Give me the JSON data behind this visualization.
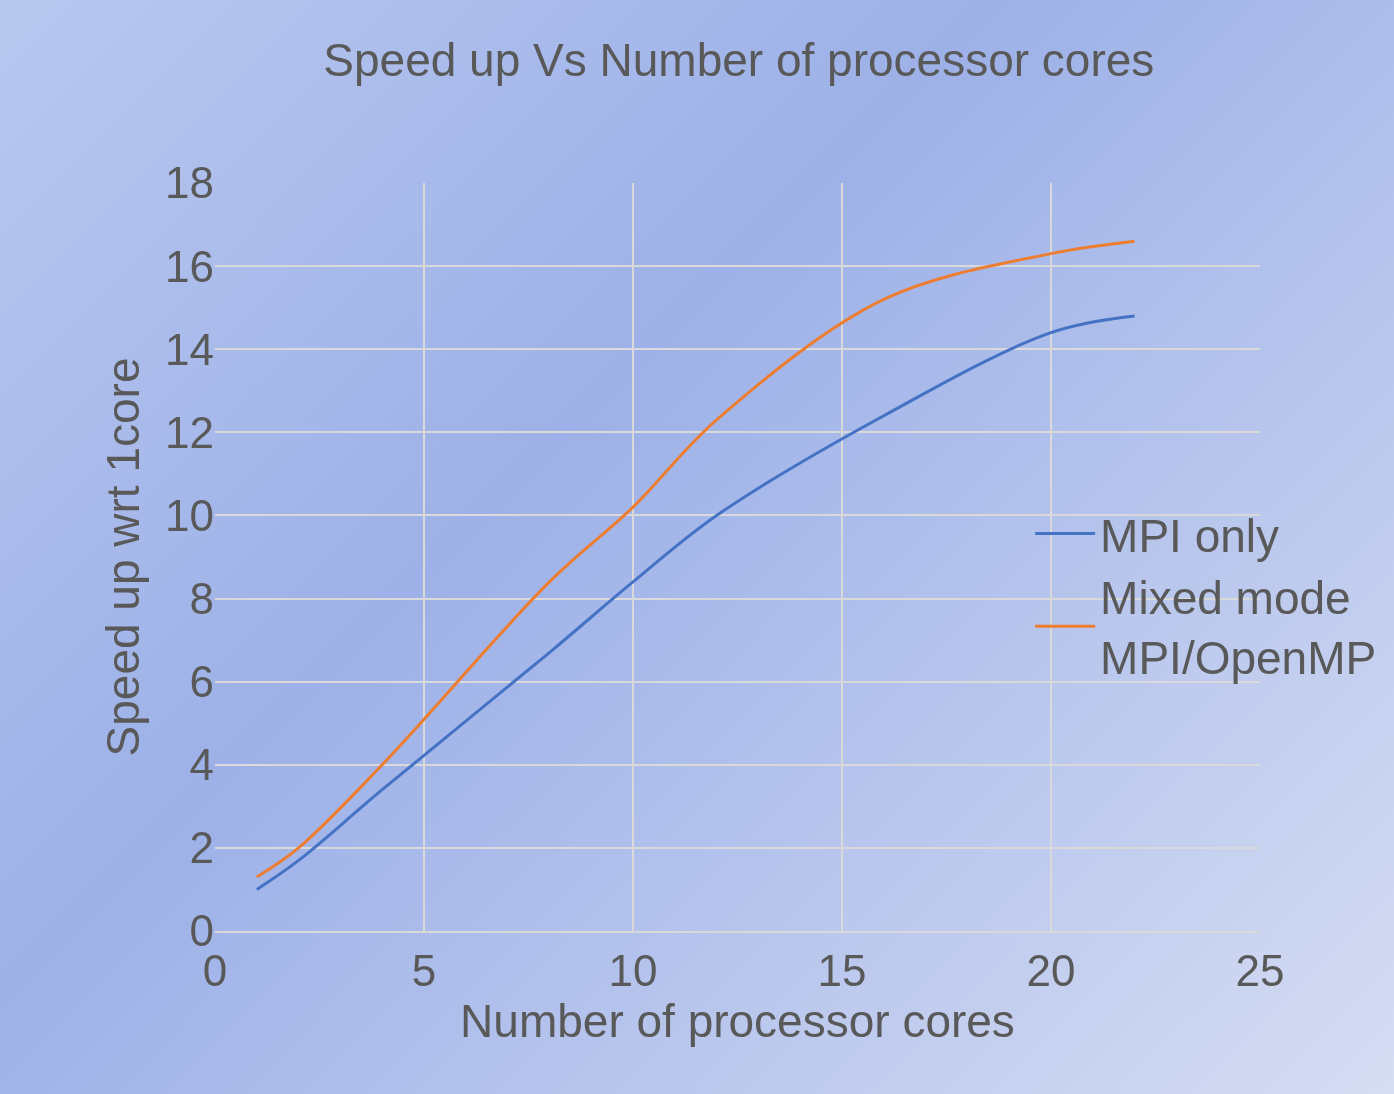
{
  "chart_data": {
    "type": "line",
    "title": "Speed up Vs Number of processor cores",
    "xlabel": "Number of processor cores",
    "ylabel": "Speed up wrt 1core",
    "x": [
      1,
      2,
      4,
      8,
      10,
      12,
      16,
      20,
      22
    ],
    "series": [
      {
        "name": "MPI only",
        "color": "#4472c4",
        "values": [
          1.0,
          1.7,
          3.4,
          6.7,
          8.4,
          10.0,
          12.4,
          14.4,
          14.8
        ]
      },
      {
        "name": "Mixed mode MPI/OpenMP",
        "color": "#ed7d31",
        "values": [
          1.3,
          2.0,
          4.0,
          8.4,
          10.2,
          12.3,
          15.2,
          16.3,
          16.6
        ]
      }
    ],
    "xlim": [
      0,
      25
    ],
    "xticks": [
      0,
      5,
      10,
      15,
      20,
      25
    ],
    "ylim": [
      0,
      18
    ],
    "yticks": [
      0,
      2,
      4,
      6,
      8,
      10,
      12,
      14,
      16,
      18
    ],
    "grid": true,
    "legend": "right",
    "marker": "none",
    "line_style": "solid"
  }
}
